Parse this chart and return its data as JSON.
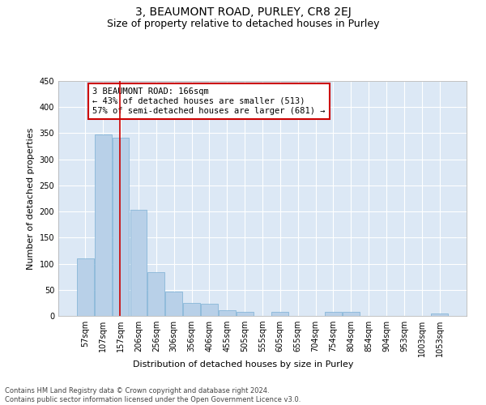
{
  "title": "3, BEAUMONT ROAD, PURLEY, CR8 2EJ",
  "subtitle": "Size of property relative to detached houses in Purley",
  "xlabel": "Distribution of detached houses by size in Purley",
  "ylabel": "Number of detached properties",
  "bar_labels": [
    "57sqm",
    "107sqm",
    "157sqm",
    "206sqm",
    "256sqm",
    "306sqm",
    "356sqm",
    "406sqm",
    "455sqm",
    "505sqm",
    "555sqm",
    "605sqm",
    "655sqm",
    "704sqm",
    "754sqm",
    "804sqm",
    "854sqm",
    "904sqm",
    "953sqm",
    "1003sqm",
    "1053sqm"
  ],
  "bar_values": [
    110,
    348,
    341,
    204,
    84,
    46,
    25,
    23,
    11,
    8,
    0,
    8,
    0,
    0,
    8,
    8,
    0,
    0,
    0,
    0,
    5
  ],
  "bar_color": "#b8d0e8",
  "bar_edge_color": "#7aafd4",
  "vline_x_index": 2,
  "vline_color": "#cc0000",
  "annotation_text": "3 BEAUMONT ROAD: 166sqm\n← 43% of detached houses are smaller (513)\n57% of semi-detached houses are larger (681) →",
  "annotation_box_color": "#ffffff",
  "annotation_box_edge_color": "#cc0000",
  "ylim": [
    0,
    450
  ],
  "yticks": [
    0,
    50,
    100,
    150,
    200,
    250,
    300,
    350,
    400,
    450
  ],
  "bg_color": "#dce8f5",
  "footer_text": "Contains HM Land Registry data © Crown copyright and database right 2024.\nContains public sector information licensed under the Open Government Licence v3.0.",
  "title_fontsize": 10,
  "subtitle_fontsize": 9,
  "tick_fontsize": 7,
  "axis_label_fontsize": 8,
  "annotation_fontsize": 7.5
}
